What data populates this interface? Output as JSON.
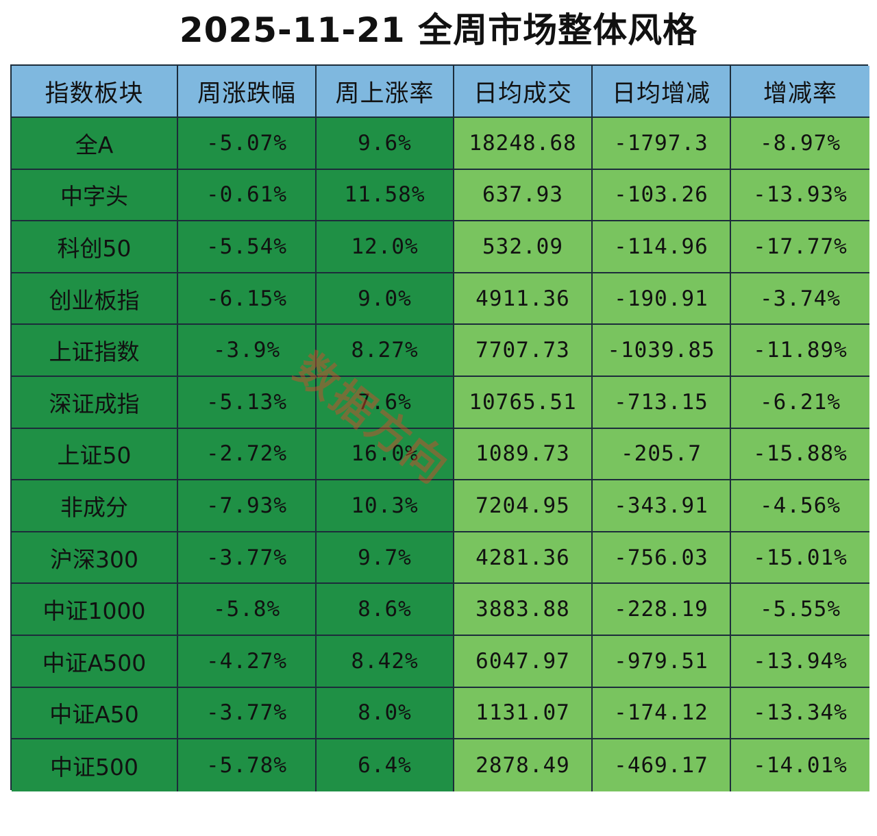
{
  "title": "2025-11-21 全周市场整体风格",
  "headers": [
    "指数板块",
    "周涨跌幅",
    "周上涨率",
    "日均成交",
    "日均增减",
    "增减率"
  ],
  "rows": [
    [
      "全A",
      "-5.07%",
      "9.6%",
      "18248.68",
      "-1797.3",
      "-8.97%"
    ],
    [
      "中字头",
      "-0.61%",
      "11.58%",
      "637.93",
      "-103.26",
      "-13.93%"
    ],
    [
      "科创50",
      "-5.54%",
      "12.0%",
      "532.09",
      "-114.96",
      "-17.77%"
    ],
    [
      "创业板指",
      "-6.15%",
      "9.0%",
      "4911.36",
      "-190.91",
      "-3.74%"
    ],
    [
      "上证指数",
      "-3.9%",
      "8.27%",
      "7707.73",
      "-1039.85",
      "-11.89%"
    ],
    [
      "深证成指",
      "-5.13%",
      "7.6%",
      "10765.51",
      "-713.15",
      "-6.21%"
    ],
    [
      "上证50",
      "-2.72%",
      "16.0%",
      "1089.73",
      "-205.7",
      "-15.88%"
    ],
    [
      "非成分",
      "-7.93%",
      "10.3%",
      "7204.95",
      "-343.91",
      "-4.56%"
    ],
    [
      "沪深300",
      "-3.77%",
      "9.7%",
      "4281.36",
      "-756.03",
      "-15.01%"
    ],
    [
      "中证1000",
      "-5.8%",
      "8.6%",
      "3883.88",
      "-228.19",
      "-5.55%"
    ],
    [
      "中证A500",
      "-4.27%",
      "8.42%",
      "6047.97",
      "-979.51",
      "-13.94%"
    ],
    [
      "中证A50",
      "-3.77%",
      "8.0%",
      "1131.07",
      "-174.12",
      "-13.34%"
    ],
    [
      "中证500",
      "-5.78%",
      "6.4%",
      "2878.49",
      "-469.17",
      "-14.01%"
    ]
  ],
  "watermark": "数据方向",
  "colors": {
    "header": "#7fb8df",
    "dark_green": "#1f9045",
    "light_green": "#79c45f",
    "border": "#1c2c3a"
  }
}
